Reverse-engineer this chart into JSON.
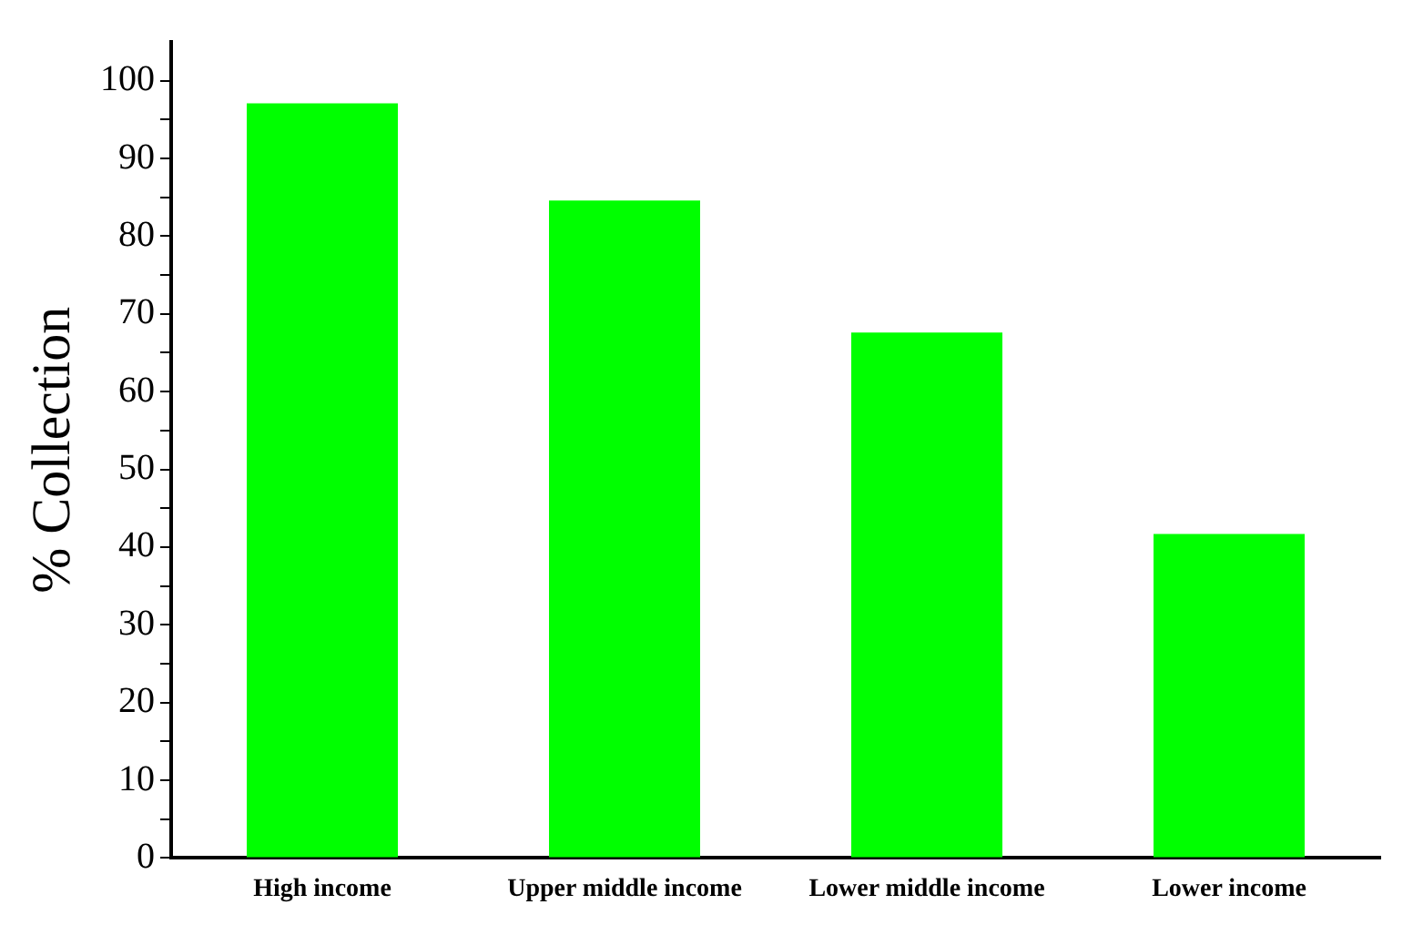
{
  "chart_data": {
    "type": "bar",
    "ylabel": "% Collection",
    "categories": [
      "High income",
      "Upper middle income",
      "Lower middle income",
      "Lower income"
    ],
    "values": [
      97.1,
      84.6,
      67.6,
      41.7
    ],
    "color": "#00ff00",
    "ylim": [
      0,
      105
    ],
    "yticks": [
      0,
      {
        "value": 5,
        "label": null
      },
      10,
      {
        "value": 15,
        "label": null
      },
      20,
      {
        "value": 25,
        "label": null
      },
      30,
      {
        "value": 35,
        "label": null
      },
      40,
      {
        "value": 45,
        "label": null
      },
      50,
      {
        "value": 55,
        "label": null
      },
      60,
      {
        "value": 65,
        "label": null
      },
      70,
      {
        "value": 75,
        "label": null
      },
      80,
      {
        "value": 85,
        "label": null
      },
      90,
      {
        "value": 95,
        "label": null
      },
      100
    ],
    "grid": false,
    "legend": false
  }
}
